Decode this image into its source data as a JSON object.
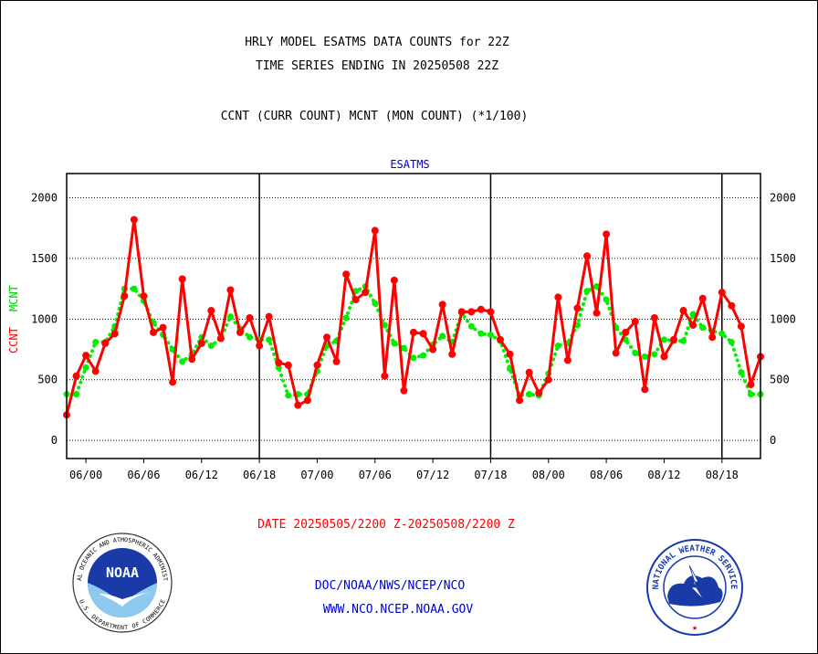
{
  "header": {
    "title_line1": "HRLY MODEL ESATMS DATA COUNTS for 22Z",
    "title_line2": "TIME SERIES ENDING IN 20250508 22Z",
    "subtitle": "CCNT (CURR COUNT) MCNT (MON COUNT) (*1/100)"
  },
  "chart_data": {
    "type": "line",
    "title": "ESATMS",
    "ylabel_ccnt": "CCNT",
    "ylabel_mcnt": "MCNT",
    "xlabel": "DATE 20250505/2200 Z-20250508/2200 Z",
    "ylim": [
      -150,
      2200
    ],
    "yticks": [
      0,
      500,
      1000,
      1500,
      2000
    ],
    "x_start_hour": -2,
    "x_end_hour": 70,
    "xticks": [
      {
        "hour": 0,
        "label": "06/00"
      },
      {
        "hour": 6,
        "label": "06/06"
      },
      {
        "hour": 12,
        "label": "06/12"
      },
      {
        "hour": 18,
        "label": "06/18"
      },
      {
        "hour": 24,
        "label": "07/00"
      },
      {
        "hour": 30,
        "label": "07/06"
      },
      {
        "hour": 36,
        "label": "07/12"
      },
      {
        "hour": 42,
        "label": "07/18"
      },
      {
        "hour": 48,
        "label": "08/00"
      },
      {
        "hour": 54,
        "label": "08/06"
      },
      {
        "hour": 60,
        "label": "08/12"
      },
      {
        "hour": 66,
        "label": "08/18"
      }
    ],
    "day_boundaries": [
      18,
      42,
      66
    ],
    "grid": true,
    "series": [
      {
        "name": "CCNT",
        "color": "#ff0000",
        "style": "solid",
        "values": [
          210,
          530,
          700,
          570,
          800,
          880,
          1190,
          1820,
          1190,
          890,
          930,
          480,
          1330,
          670,
          800,
          1070,
          840,
          1240,
          890,
          1010,
          780,
          1020,
          640,
          620,
          290,
          330,
          620,
          850,
          650,
          1370,
          1160,
          1220,
          1730,
          530,
          1320,
          410,
          890,
          880,
          750,
          1120,
          710,
          1060,
          1060,
          1080,
          1060,
          830,
          710,
          330,
          560,
          390,
          500,
          1180,
          660,
          1090,
          1520,
          1050,
          1700,
          720,
          890,
          980,
          420,
          1010,
          690,
          830,
          1070,
          950,
          1170,
          850,
          1220,
          1110,
          940,
          460,
          690
        ]
      },
      {
        "name": "MCNT",
        "color": "#00ee00",
        "style": "dotted",
        "values": [
          380,
          380,
          600,
          810,
          810,
          940,
          1250,
          1250,
          1150,
          970,
          870,
          750,
          650,
          710,
          850,
          780,
          840,
          1020,
          920,
          850,
          830,
          830,
          600,
          370,
          380,
          380,
          570,
          780,
          820,
          1010,
          1230,
          1270,
          1130,
          950,
          800,
          760,
          680,
          700,
          790,
          860,
          810,
          1050,
          940,
          880,
          870,
          820,
          590,
          370,
          380,
          370,
          550,
          780,
          800,
          950,
          1230,
          1270,
          1160,
          930,
          830,
          720,
          690,
          710,
          830,
          820,
          820,
          1040,
          930,
          900,
          880,
          810,
          560,
          380,
          380
        ]
      }
    ]
  },
  "footer": {
    "org_line1": "DOC/NOAA/NWS/NCEP/NCO",
    "org_line2": "WWW.NCO.NCEP.NOAA.GOV",
    "noaa_logo_text": "NOAA",
    "noaa_ring_text": "NATIONAL OCEANIC AND ATMOSPHERIC ADMINISTRATION",
    "noaa_ring_bottom": "U.S. DEPARTMENT OF COMMERCE",
    "nws_ring_text": "NATIONAL WEATHER SERVICE"
  }
}
